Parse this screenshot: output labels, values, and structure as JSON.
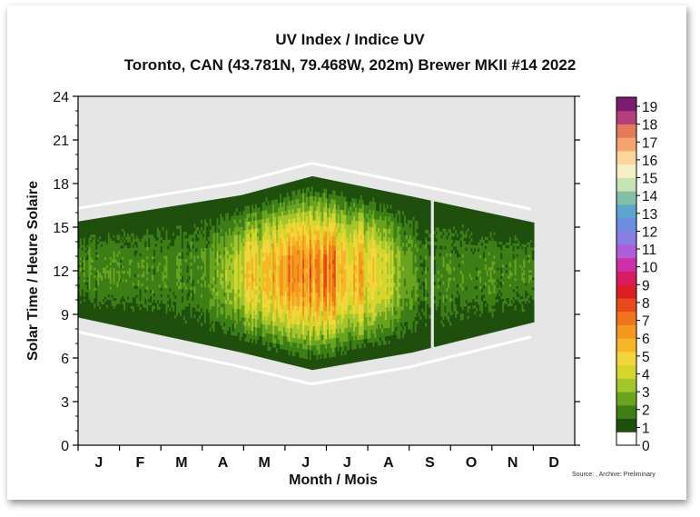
{
  "chart_data": {
    "type": "heatmap",
    "title": "UV Index / Indice UV",
    "subtitle": "Toronto, CAN (43.781N, 79.468W, 202m) Brewer MKII #14 2022",
    "xlabel": "Month / Mois",
    "ylabel": "Solar Time / Heure Solaire",
    "x_categories": [
      "J",
      "F",
      "M",
      "A",
      "M",
      "J",
      "J",
      "A",
      "S",
      "O",
      "N",
      "D"
    ],
    "x_range_days": [
      1,
      365
    ],
    "ylim": [
      0,
      24
    ],
    "y_ticks": [
      0,
      3,
      6,
      9,
      12,
      15,
      18,
      21,
      24
    ],
    "colorbar": {
      "labels": [
        "0",
        "1",
        "2",
        "3",
        "4",
        "5",
        "6",
        "7",
        "8",
        "9",
        "10",
        "11",
        "12",
        "13",
        "14",
        "15",
        "16",
        "17",
        "18",
        "19"
      ],
      "colors": [
        "#ffffff",
        "#1f4f0c",
        "#3d7e16",
        "#6aa41f",
        "#a4c52d",
        "#d4d62c",
        "#f3d53c",
        "#f7b627",
        "#f4991f",
        "#f0741a",
        "#e9481a",
        "#de1e24",
        "#d81c60",
        "#cd2fa8",
        "#b05ed8",
        "#8a7ee4",
        "#6b8ee2",
        "#5aa6cf",
        "#86bfa8",
        "#c9e4b4",
        "#f7f0c4",
        "#fbd79c",
        "#f5a470",
        "#e47a5a",
        "#b3407a",
        "#7a1d6e"
      ]
    },
    "measurement_window": [
      {
        "day": 1,
        "start": 8.8,
        "end": 15.4
      },
      {
        "day": 120,
        "start": 6.4,
        "end": 17.2
      },
      {
        "day": 172,
        "start": 5.2,
        "end": 18.5
      },
      {
        "day": 245,
        "start": 6.4,
        "end": 17.1
      },
      {
        "day": 335,
        "start": 8.5,
        "end": 15.3
      }
    ],
    "data_gaps_days": [
      260
    ],
    "peak_uv": {
      "value": 9,
      "month": "J",
      "solar_time": 12
    },
    "source_note": "Source: , Archive: Preliminary"
  }
}
